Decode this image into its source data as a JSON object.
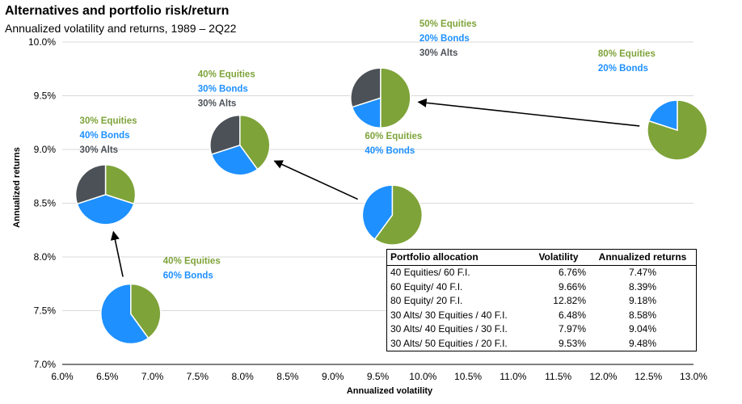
{
  "title": "Alternatives and portfolio risk/return",
  "subtitle": "Annualized volatility and returns, 1989 – 2Q22",
  "colors": {
    "equities": "#7ea339",
    "bonds": "#1e90ff",
    "alts": "#4c5157"
  },
  "chart_data": {
    "type": "scatter",
    "xlabel": "Annualized volatility",
    "ylabel": "Annualized returns",
    "xlim": [
      6.0,
      13.0
    ],
    "ylim": [
      7.0,
      10.0
    ],
    "x_ticks": [
      "6.0%",
      "6.5%",
      "7.0%",
      "7.5%",
      "8.0%",
      "8.5%",
      "9.0%",
      "9.5%",
      "10.0%",
      "10.5%",
      "11.0%",
      "11.5%",
      "12.0%",
      "12.5%",
      "13.0%"
    ],
    "y_ticks": [
      "7.0%",
      "7.5%",
      "8.0%",
      "8.5%",
      "9.0%",
      "9.5%",
      "10.0%"
    ],
    "portfolios": [
      {
        "name": "40/60",
        "volatility": 6.76,
        "return": 7.47,
        "equities": 40,
        "bonds": 60,
        "alts": 0,
        "labels": [
          {
            "text": "40% Equities",
            "kind": "equities"
          },
          {
            "text": "60% Bonds",
            "kind": "bonds"
          }
        ]
      },
      {
        "name": "60/40",
        "volatility": 9.66,
        "return": 8.39,
        "equities": 60,
        "bonds": 40,
        "alts": 0,
        "labels": [
          {
            "text": "60% Equities",
            "kind": "equities"
          },
          {
            "text": "40% Bonds",
            "kind": "bonds"
          }
        ]
      },
      {
        "name": "80/20",
        "volatility": 12.82,
        "return": 9.18,
        "equities": 80,
        "bonds": 20,
        "alts": 0,
        "labels": [
          {
            "text": "80% Equities",
            "kind": "equities"
          },
          {
            "text": "20% Bonds",
            "kind": "bonds"
          }
        ]
      },
      {
        "name": "30 Alts/30 Eq/40 FI",
        "volatility": 6.48,
        "return": 8.58,
        "equities": 30,
        "bonds": 40,
        "alts": 30,
        "labels": [
          {
            "text": "30% Equities",
            "kind": "equities"
          },
          {
            "text": "40% Bonds",
            "kind": "bonds"
          },
          {
            "text": "30% Alts",
            "kind": "alts"
          }
        ]
      },
      {
        "name": "30 Alts/40 Eq/30 FI",
        "volatility": 7.97,
        "return": 9.04,
        "equities": 40,
        "bonds": 30,
        "alts": 30,
        "labels": [
          {
            "text": "40% Equities",
            "kind": "equities"
          },
          {
            "text": "30% Bonds",
            "kind": "bonds"
          },
          {
            "text": "30% Alts",
            "kind": "alts"
          }
        ]
      },
      {
        "name": "30 Alts/50 Eq/20 FI",
        "volatility": 9.53,
        "return": 9.48,
        "equities": 50,
        "bonds": 20,
        "alts": 30,
        "labels": [
          {
            "text": "50% Equities",
            "kind": "equities"
          },
          {
            "text": "20% Bonds",
            "kind": "bonds"
          },
          {
            "text": "30% Alts",
            "kind": "alts"
          }
        ]
      }
    ],
    "arrows": [
      {
        "from": "40/60",
        "to": "30 Alts/30 Eq/40 FI"
      },
      {
        "from": "60/40",
        "to": "30 Alts/40 Eq/30 FI"
      },
      {
        "from": "80/20",
        "to": "30 Alts/50 Eq/20 FI"
      }
    ],
    "table": {
      "headers": [
        "Portfolio allocation",
        "Volatility",
        "Annualized returns"
      ],
      "rows": [
        [
          "40 Equities/ 60 F.I.",
          "6.76%",
          "7.47%"
        ],
        [
          "60 Equity/ 40 F.I.",
          "9.66%",
          "8.39%"
        ],
        [
          "80 Equity/ 20 F.I.",
          "12.82%",
          "9.18%"
        ],
        [
          "30 Alts/ 30 Equities / 40 F.I.",
          "6.48%",
          "8.58%"
        ],
        [
          "30 Alts/ 40 Equities / 30 F.I.",
          "7.97%",
          "9.04%"
        ],
        [
          "30 Alts/ 50 Equities / 20 F.I.",
          "9.53%",
          "9.48%"
        ]
      ]
    }
  }
}
